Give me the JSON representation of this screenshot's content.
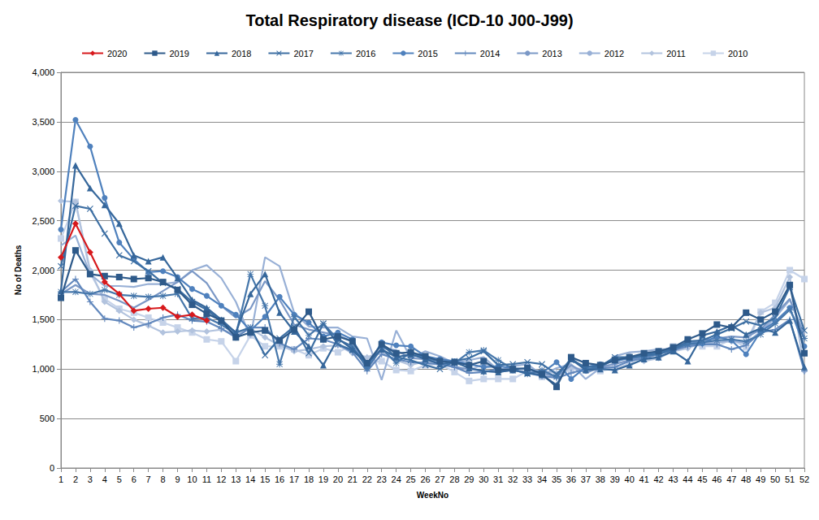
{
  "chart_data": {
    "type": "line",
    "title": "Total Respiratory disease (ICD-10 J00-J99)",
    "x_label": "WeekNo",
    "y_label": "No of Deaths",
    "categories": [
      1,
      2,
      3,
      4,
      5,
      6,
      7,
      8,
      9,
      10,
      11,
      12,
      13,
      14,
      15,
      16,
      17,
      18,
      19,
      20,
      21,
      22,
      23,
      24,
      25,
      26,
      27,
      28,
      29,
      30,
      31,
      32,
      33,
      34,
      35,
      36,
      37,
      38,
      39,
      40,
      41,
      42,
      43,
      44,
      45,
      46,
      47,
      48,
      49,
      50,
      51,
      52
    ],
    "ylim": [
      0,
      4000
    ],
    "yticks": [
      0,
      500,
      {
        "value": 1000,
        "label": "1,000"
      },
      {
        "value": 1500,
        "label": "1,500"
      },
      {
        "value": 2000,
        "label": "2,000"
      },
      {
        "value": 2500,
        "label": "2,500"
      },
      {
        "value": 3000,
        "label": "3,000"
      },
      {
        "value": 3500,
        "label": "3,500"
      },
      {
        "value": 4000,
        "label": "4,000"
      }
    ],
    "grid": true,
    "legend": "top",
    "series": [
      {
        "name": "2020",
        "color": "#d7191c",
        "marker": "diamond",
        "values": [
          2130,
          2470,
          2180,
          1880,
          1760,
          1590,
          1610,
          1620,
          1530,
          1550,
          1490,
          null,
          null,
          null,
          null,
          null,
          null,
          null,
          null,
          null,
          null,
          null,
          null,
          null,
          null,
          null,
          null,
          null,
          null,
          null,
          null,
          null,
          null,
          null,
          null,
          null,
          null,
          null,
          null,
          null,
          null,
          null,
          null,
          null,
          null,
          null,
          null,
          null,
          null,
          null,
          null,
          null
        ]
      },
      {
        "name": "2019",
        "color": "#2e5a8a",
        "marker": "square",
        "values": [
          1720,
          2200,
          1960,
          1940,
          1930,
          1910,
          1920,
          1880,
          1800,
          1650,
          1560,
          1490,
          1320,
          1370,
          1390,
          1290,
          1400,
          1580,
          1300,
          1330,
          1280,
          1060,
          1250,
          1160,
          1170,
          1130,
          1080,
          1070,
          1040,
          1080,
          990,
          1000,
          1010,
          950,
          820,
          1120,
          1060,
          1040,
          1090,
          1120,
          1160,
          1180,
          1220,
          1300,
          1360,
          1450,
          1420,
          1570,
          1500,
          1580,
          1850,
          1160
        ]
      },
      {
        "name": "2018",
        "color": "#36679b",
        "marker": "triangle",
        "values": [
          1790,
          3060,
          2830,
          2660,
          2470,
          2150,
          2090,
          2130,
          1920,
          1700,
          1620,
          1500,
          1370,
          1760,
          1960,
          1570,
          1380,
          1230,
          1040,
          1310,
          1200,
          1060,
          1200,
          1120,
          1150,
          1100,
          1050,
          1070,
          1010,
          980,
          970,
          990,
          960,
          940,
          840,
          1100,
          990,
          1000,
          990,
          1040,
          1100,
          1120,
          1180,
          1080,
          1340,
          1380,
          1440,
          1350,
          1410,
          1370,
          1490,
          1020
        ]
      },
      {
        "name": "2017",
        "color": "#3d6fa3",
        "marker": "x",
        "values": [
          2040,
          2650,
          2620,
          2370,
          2150,
          2090,
          1990,
          1870,
          1810,
          1680,
          1600,
          1480,
          1370,
          1420,
          1140,
          1310,
          1430,
          1160,
          1460,
          1250,
          1190,
          1050,
          1250,
          1120,
          1090,
          1040,
          1000,
          1080,
          1110,
          1180,
          1040,
          1050,
          1070,
          1050,
          950,
          1090,
          1020,
          1030,
          1120,
          1120,
          1140,
          1160,
          1200,
          1280,
          1290,
          1350,
          1410,
          1480,
          1440,
          1520,
          1830,
          1390
        ]
      },
      {
        "name": "2016",
        "color": "#4677ab",
        "marker": "asterisk",
        "values": [
          1780,
          1780,
          1760,
          1800,
          1750,
          1740,
          1730,
          1740,
          1760,
          1510,
          1520,
          1450,
          1350,
          1960,
          1640,
          1050,
          1530,
          1340,
          1460,
          1300,
          1230,
          1010,
          1210,
          1060,
          1170,
          1110,
          1080,
          1060,
          1170,
          1190,
          1090,
          1000,
          950,
          990,
          920,
          1110,
          1000,
          1020,
          1100,
          1110,
          1130,
          1150,
          1200,
          1250,
          1270,
          1290,
          1300,
          1280,
          1350,
          1460,
          1600,
          1310
        ]
      },
      {
        "name": "2015",
        "color": "#4f81bd",
        "marker": "circle",
        "values": [
          2410,
          3520,
          3250,
          2730,
          2280,
          2110,
          1980,
          1990,
          1930,
          1810,
          1740,
          1640,
          1550,
          1390,
          1530,
          1730,
          1550,
          1470,
          1330,
          1370,
          1300,
          1020,
          1270,
          1240,
          1230,
          1130,
          1100,
          1080,
          1050,
          1020,
          1030,
          1010,
          1000,
          960,
          1070,
          900,
          1020,
          1050,
          1080,
          1110,
          1140,
          1180,
          1200,
          1260,
          1260,
          1330,
          1290,
          1150,
          1380,
          1480,
          1620,
          1230
        ]
      },
      {
        "name": "2014",
        "color": "#6288bd",
        "marker": "plus",
        "values": [
          1780,
          1910,
          1680,
          1510,
          1490,
          1420,
          1460,
          1520,
          1550,
          1490,
          1480,
          1410,
          1320,
          1420,
          1420,
          1260,
          1200,
          1310,
          1300,
          1250,
          1170,
          980,
          1150,
          1100,
          1070,
          1060,
          1050,
          1020,
          960,
          970,
          1000,
          990,
          960,
          930,
          910,
          960,
          1000,
          1010,
          1020,
          1080,
          1110,
          1150,
          1190,
          1230,
          1250,
          1250,
          1200,
          1240,
          1370,
          1400,
          1500,
          980
        ]
      },
      {
        "name": "2013",
        "color": "#7b98c6",
        "marker": "none",
        "values": [
          1760,
          1850,
          1760,
          1750,
          1690,
          1620,
          1700,
          1790,
          1880,
          1990,
          1870,
          1640,
          1520,
          1610,
          1890,
          1700,
          1450,
          1400,
          1370,
          1340,
          1280,
          1000,
          1210,
          1190,
          1110,
          1100,
          1060,
          1020,
          1000,
          980,
          970,
          990,
          970,
          960,
          920,
          1040,
          960,
          1020,
          1050,
          1090,
          1130,
          1170,
          1230,
          1260,
          1290,
          1310,
          1330,
          1320,
          1400,
          1550,
          1710,
          1330
        ]
      },
      {
        "name": "2012",
        "color": "#98b0d6",
        "marker": "none",
        "values": [
          2250,
          2350,
          1960,
          1840,
          1840,
          1830,
          1860,
          1860,
          1880,
          2000,
          2050,
          1920,
          1680,
          1320,
          2130,
          2040,
          1570,
          1430,
          1420,
          1420,
          1330,
          1310,
          890,
          1390,
          1110,
          1180,
          1130,
          1060,
          1090,
          1120,
          990,
          1030,
          1050,
          940,
          1010,
          1050,
          900,
          1010,
          1130,
          1170,
          1180,
          1200,
          1200,
          1230,
          1260,
          1270,
          1290,
          1260,
          1380,
          1520,
          1700,
          1360
        ]
      },
      {
        "name": "2011",
        "color": "#b2c3de",
        "marker": "diamond",
        "values": [
          2700,
          2690,
          2000,
          1680,
          1590,
          1500,
          1440,
          1370,
          1380,
          1390,
          1380,
          1400,
          1350,
          1410,
          1320,
          1240,
          1180,
          1200,
          1230,
          1240,
          1160,
          1120,
          1170,
          1090,
          1040,
          1080,
          1070,
          1030,
          990,
          1050,
          1000,
          1000,
          1000,
          980,
          960,
          1010,
          1000,
          1010,
          1060,
          1140,
          1080,
          1110,
          1180,
          1210,
          1270,
          1270,
          1280,
          1270,
          1570,
          1620,
          1930,
          980
        ]
      },
      {
        "name": "2010",
        "color": "#c6d3e9",
        "marker": "square",
        "values": [
          2320,
          2690,
          1970,
          1710,
          1610,
          1570,
          1520,
          1470,
          1420,
          1370,
          1300,
          1280,
          1080,
          1340,
          1230,
          1230,
          1200,
          1140,
          1210,
          1170,
          1240,
          1060,
          1080,
          990,
          980,
          1040,
          1050,
          970,
          880,
          900,
          900,
          900,
          980,
          920,
          930,
          1000,
          1000,
          980,
          1010,
          1050,
          1160,
          1160,
          1230,
          1260,
          1230,
          1230,
          1300,
          1220,
          1580,
          1670,
          2000,
          1910
        ]
      }
    ]
  }
}
